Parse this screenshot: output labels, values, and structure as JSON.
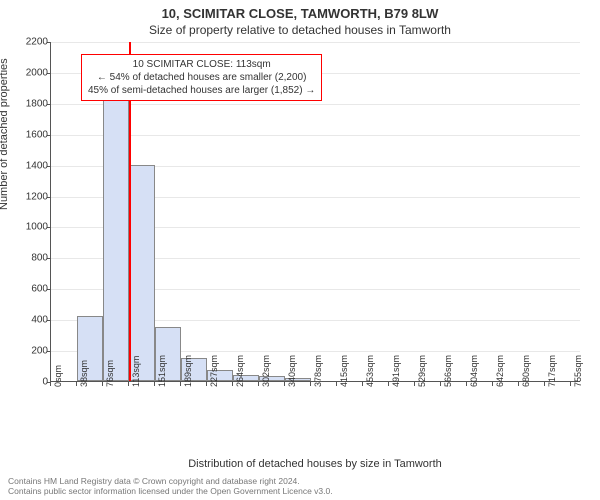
{
  "title": "10, SCIMITAR CLOSE, TAMWORTH, B79 8LW",
  "subtitle": "Size of property relative to detached houses in Tamworth",
  "ylabel": "Number of detached properties",
  "xlabel": "Distribution of detached houses by size in Tamworth",
  "chart": {
    "type": "histogram",
    "background_color": "#ffffff",
    "grid_color": "#e8e8e8",
    "axis_color": "#555555",
    "bar_fill": "#d6e0f5",
    "bar_border": "#888888",
    "marker_color": "#ff0000",
    "callout_border": "#ff0000",
    "ylim": [
      0,
      2200
    ],
    "ytick_step": 200,
    "xticks": [
      "0sqm",
      "38sqm",
      "76sqm",
      "113sqm",
      "151sqm",
      "189sqm",
      "227sqm",
      "264sqm",
      "302sqm",
      "340sqm",
      "378sqm",
      "415sqm",
      "453sqm",
      "491sqm",
      "529sqm",
      "566sqm",
      "604sqm",
      "642sqm",
      "680sqm",
      "717sqm",
      "755sqm"
    ],
    "bin_edges_sqm": [
      0,
      38,
      76,
      113,
      151,
      189,
      227,
      264,
      302,
      340,
      378,
      415,
      453,
      491,
      529,
      566,
      604,
      642,
      680,
      717,
      755
    ],
    "values": [
      0,
      420,
      1880,
      1400,
      350,
      150,
      70,
      40,
      30,
      20,
      0,
      0,
      0,
      0,
      0,
      0,
      0,
      0,
      0,
      0
    ],
    "marker_sqm": 113,
    "xmax_sqm": 770,
    "tick_fontsize": 10,
    "label_fontsize": 11
  },
  "callout": {
    "line1": "10 SCIMITAR CLOSE: 113sqm",
    "line2": "← 54% of detached houses are smaller (2,200)",
    "line3": "45% of semi-detached houses are larger (1,852) →"
  },
  "footer": {
    "line1": "Contains HM Land Registry data © Crown copyright and database right 2024.",
    "line2": "Contains public sector information licensed under the Open Government Licence v3.0."
  }
}
